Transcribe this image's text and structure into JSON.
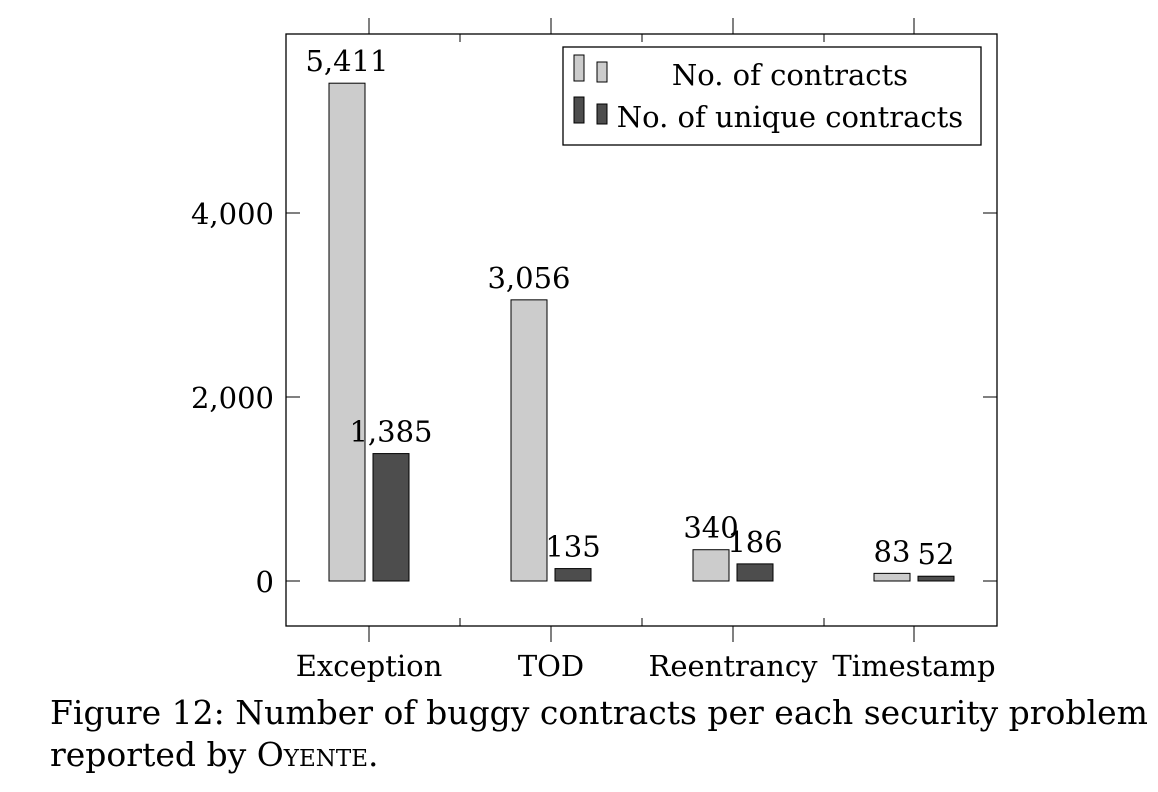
{
  "chart_data": {
    "type": "bar",
    "categories": [
      "Exception",
      "TOD",
      "Reentrancy",
      "Timestamp"
    ],
    "series": [
      {
        "name": "No. of contracts",
        "values": [
          5411,
          3056,
          340,
          83
        ],
        "labels": [
          "5,411",
          "3,056",
          "340",
          "83"
        ],
        "color": "#cccccc"
      },
      {
        "name": "No. of unique contracts",
        "values": [
          1385,
          135,
          186,
          52
        ],
        "labels": [
          "1,385",
          "135",
          "186",
          "52"
        ],
        "color": "#4d4d4d"
      }
    ],
    "yticks": [
      0,
      2000,
      4000
    ],
    "ytick_labels": [
      "0",
      "2,000",
      "4,000"
    ],
    "ylim": [
      -500,
      5950
    ],
    "legend_position": "top-right",
    "grid": false
  },
  "caption": {
    "prefix": "Figure 12: Number of buggy contracts per each security problem",
    "line2_prefix": "reported by ",
    "tool_name": "Oyente",
    "line2_suffix": "."
  }
}
